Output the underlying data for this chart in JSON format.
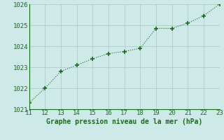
{
  "x": [
    11,
    12,
    13,
    14,
    15,
    16,
    17,
    18,
    19,
    20,
    21,
    22,
    23
  ],
  "y": [
    1021.3,
    1022.0,
    1022.8,
    1023.1,
    1023.4,
    1023.65,
    1023.75,
    1023.9,
    1024.85,
    1024.85,
    1025.1,
    1025.45,
    1026.0
  ],
  "xlim": [
    11,
    23
  ],
  "ylim": [
    1021,
    1026
  ],
  "xticks": [
    11,
    12,
    13,
    14,
    15,
    16,
    17,
    18,
    19,
    20,
    21,
    22,
    23
  ],
  "yticks": [
    1021,
    1022,
    1023,
    1024,
    1025,
    1026
  ],
  "xlabel": "Graphe pression niveau de la mer (hPa)",
  "line_color": "#1a6b1a",
  "marker": "+",
  "marker_size": 4.5,
  "bg_color": "#ceeae8",
  "grid_color": "#b0ccca",
  "tick_label_color": "#1a6b1a",
  "xlabel_color": "#1a6b1a",
  "xlabel_fontsize": 7.0,
  "tick_fontsize": 6.5,
  "spine_color": "#1a6b1a"
}
